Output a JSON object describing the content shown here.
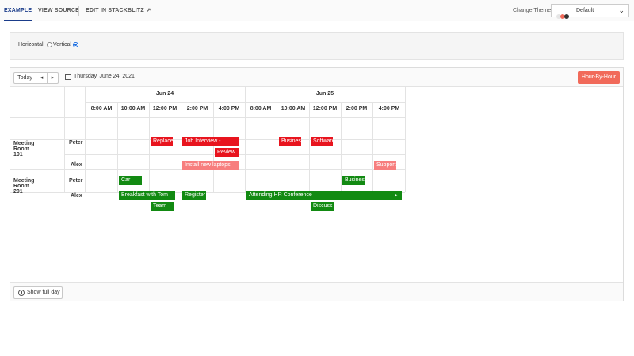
{
  "topbar": {
    "tabs": [
      {
        "label": "EXAMPLE",
        "active": true
      },
      {
        "label": "VIEW SOURCE",
        "active": false
      },
      {
        "label": "EDIT IN STACKBLITZ",
        "active": false
      }
    ],
    "external_icon": "external-link-icon",
    "theme_label": "Change Theme:",
    "theme_value": "Default",
    "theme_colors": [
      "#e6e6e6",
      "#f16a5a",
      "#333333"
    ]
  },
  "orientation": {
    "label": "Horizontal",
    "options": [
      {
        "label": "Horizontal",
        "checked": false
      },
      {
        "label": "Vertical",
        "checked": true
      }
    ]
  },
  "toolbar": {
    "today_label": "Today",
    "prev_icon": "◂",
    "next_icon": "▸",
    "calendar_icon": "calendar-icon",
    "date_text": "Thursday, June 24, 2021",
    "view_label": "Hour-By-Hour"
  },
  "timeline": {
    "dates": [
      "Jun 24",
      "Jun 25"
    ],
    "times": [
      "8:00 AM",
      "10:00 AM",
      "12:00 PM",
      "2:00 PM",
      "4:00 PM",
      "8:00 AM",
      "10:00 AM",
      "12:00 PM",
      "2:00 PM",
      "4:00 PM"
    ],
    "rooms": [
      "Meeting Room 101",
      "Meeting Room 201"
    ],
    "people": [
      "Peter",
      "Alex",
      "Peter",
      "Alex"
    ]
  },
  "events": [
    {
      "title": "Replace",
      "color": "red"
    },
    {
      "title": "Job Interview -",
      "color": "red"
    },
    {
      "title": "Review",
      "color": "red"
    },
    {
      "title": "Business",
      "color": "red"
    },
    {
      "title": "Software",
      "color": "red"
    },
    {
      "title": "Install new laptops",
      "color": "pink"
    },
    {
      "title": "Support",
      "color": "pink"
    },
    {
      "title": "Car",
      "color": "green"
    },
    {
      "title": "Business",
      "color": "green"
    },
    {
      "title": "Breakfast with Tom",
      "color": "green"
    },
    {
      "title": "Register",
      "color": "green"
    },
    {
      "title": "Attending HR Conference",
      "color": "green"
    },
    {
      "title": "Team",
      "color": "green"
    },
    {
      "title": "Discuss",
      "color": "green"
    }
  ],
  "colors": {
    "red": "#e8141e",
    "pink": "#f77e7e",
    "green": "#128a12",
    "accent": "#f16a5a"
  },
  "footer": {
    "show_full_day_label": "Show full day",
    "clock_icon": "clock-icon"
  }
}
